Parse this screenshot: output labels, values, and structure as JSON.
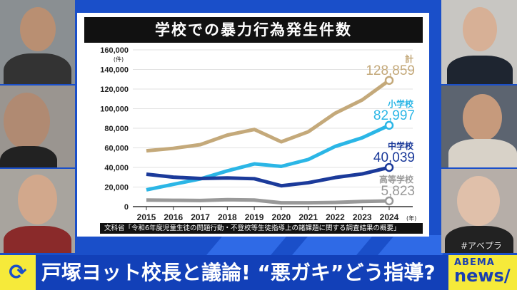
{
  "chart_data": {
    "type": "line",
    "title": "学校での暴力行為発生件数",
    "x": [
      2015,
      2016,
      2017,
      2018,
      2019,
      2020,
      2021,
      2022,
      2023,
      2024
    ],
    "x_unit": "(年)",
    "y_unit": "(件)",
    "ylim": [
      0,
      160000
    ],
    "yticks": [
      "0",
      "20,000",
      "40,000",
      "60,000",
      "80,000",
      "100,000",
      "120,000",
      "140,000",
      "160,000"
    ],
    "grid": true,
    "series": [
      {
        "name": "計",
        "color": "#c4a97a",
        "last_label": "128,859",
        "values": [
          57000,
          59500,
          63300,
          73000,
          78800,
          66200,
          76400,
          95400,
          108900,
          128859
        ]
      },
      {
        "name": "小学校",
        "color": "#2bb6e6",
        "last_label": "82,997",
        "values": [
          17100,
          22800,
          28300,
          36500,
          43600,
          41100,
          48100,
          61500,
          70300,
          82997
        ]
      },
      {
        "name": "中学校",
        "color": "#1b3a9a",
        "last_label": "40,039",
        "values": [
          33100,
          30100,
          28700,
          29300,
          28500,
          21300,
          24400,
          29700,
          33400,
          40039
        ]
      },
      {
        "name": "高等学校",
        "color": "#999999",
        "last_label": "5,823",
        "values": [
          6700,
          6500,
          6300,
          7100,
          6700,
          3900,
          3900,
          4300,
          5300,
          5823
        ]
      }
    ],
    "source": "文科省「令和6年度児童生徒の問題行動・不登校等生徒指導上の諸課題に関する調査結果の概要」"
  },
  "banner": {
    "headline": "戸塚ヨット校長と議論! “悪ガキ”どう指導?",
    "logo_top": "ABEMA",
    "logo_bottom": "news/",
    "hashtag": "#アベプラ",
    "icon": "refresh-arrows-icon"
  }
}
